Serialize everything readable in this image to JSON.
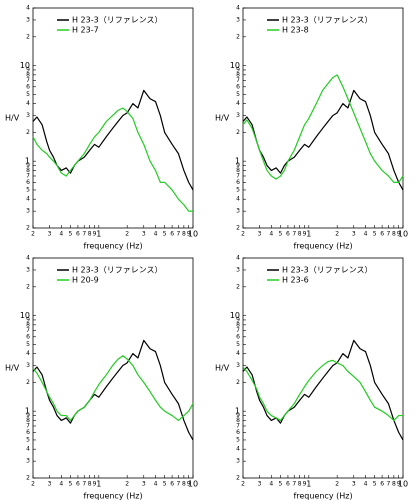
{
  "chart_data": [
    {
      "type": "line",
      "x_label": "frequency (Hz)",
      "y_label": "H/V",
      "log_x": true,
      "log_y": true,
      "grid": false,
      "legend": "upper left",
      "xlim": [
        0.2,
        10
      ],
      "ylim": [
        0.2,
        40
      ],
      "xticks": [
        {
          "value": 0.2,
          "label": "2"
        },
        {
          "value": 0.3,
          "label": "3"
        },
        {
          "value": 0.4,
          "label": "4"
        },
        {
          "value": 0.5,
          "label": "5"
        },
        {
          "value": 0.6,
          "label": "6"
        },
        {
          "value": 0.7,
          "label": "7"
        },
        {
          "value": 0.8,
          "label": "8"
        },
        {
          "value": 0.9,
          "label": "9"
        },
        1,
        {
          "value": 2,
          "label": "2"
        },
        {
          "value": 3,
          "label": "3"
        },
        {
          "value": 4,
          "label": "4"
        },
        {
          "value": 5,
          "label": "5"
        },
        {
          "value": 6,
          "label": "6"
        },
        {
          "value": 7,
          "label": "7"
        },
        {
          "value": 8,
          "label": "8"
        },
        {
          "value": 9,
          "label": "9"
        },
        10
      ],
      "yticks": [
        {
          "value": 0.2,
          "label": "2"
        },
        {
          "value": 0.3,
          "label": "3"
        },
        {
          "value": 0.4,
          "label": "4"
        },
        {
          "value": 0.5,
          "label": "5"
        },
        {
          "value": 0.6,
          "label": "6"
        },
        {
          "value": 0.7,
          "label": "7"
        },
        {
          "value": 0.8,
          "label": "8"
        },
        {
          "value": 0.9,
          "label": "9"
        },
        1,
        {
          "value": 2,
          "label": "2"
        },
        {
          "value": 3,
          "label": "3"
        },
        {
          "value": 4,
          "label": "4"
        },
        {
          "value": 5,
          "label": "5"
        },
        {
          "value": 6,
          "label": "6"
        },
        {
          "value": 7,
          "label": "7"
        },
        {
          "value": 8,
          "label": "8"
        },
        {
          "value": 9,
          "label": "9"
        },
        10,
        {
          "value": 20,
          "label": "2"
        },
        {
          "value": 30,
          "label": "3"
        },
        {
          "value": 40,
          "label": "4"
        }
      ],
      "x": [
        0.2,
        0.22,
        0.25,
        0.28,
        0.3,
        0.33,
        0.36,
        0.4,
        0.45,
        0.5,
        0.55,
        0.6,
        0.7,
        0.8,
        0.9,
        1,
        1.2,
        1.4,
        1.6,
        1.8,
        2,
        2.3,
        2.6,
        3,
        3.5,
        4,
        4.5,
        5,
        6,
        7,
        8,
        9,
        10
      ],
      "series": [
        {
          "name": "H 23-3（リファレンス）",
          "color": "#000000",
          "values": [
            2.6,
            2.9,
            2.4,
            1.6,
            1.3,
            1.1,
            0.9,
            0.8,
            0.85,
            0.75,
            0.9,
            1.0,
            1.1,
            1.3,
            1.5,
            1.4,
            1.8,
            2.2,
            2.6,
            3.0,
            3.2,
            4.0,
            3.6,
            5.5,
            4.5,
            4.2,
            3.0,
            2.0,
            1.5,
            1.2,
            0.8,
            0.6,
            0.5
          ]
        },
        {
          "name": "H 23-7",
          "color": "#22cc22",
          "values": [
            1.8,
            1.5,
            1.3,
            1.2,
            1.1,
            1.0,
            0.9,
            0.75,
            0.7,
            0.8,
            0.9,
            1.0,
            1.2,
            1.5,
            1.8,
            2.0,
            2.6,
            3.0,
            3.4,
            3.6,
            3.3,
            2.8,
            2.0,
            1.5,
            1.0,
            0.8,
            0.6,
            0.6,
            0.5,
            0.4,
            0.35,
            0.3,
            0.3
          ]
        }
      ]
    },
    {
      "type": "line",
      "x_label": "frequency (Hz)",
      "y_label": "H/V",
      "log_x": true,
      "log_y": true,
      "grid": false,
      "legend": "upper left",
      "xlim": [
        0.2,
        10
      ],
      "ylim": [
        0.2,
        40
      ],
      "xticks": [
        {
          "value": 0.2,
          "label": "2"
        },
        {
          "value": 0.3,
          "label": "3"
        },
        {
          "value": 0.4,
          "label": "4"
        },
        {
          "value": 0.5,
          "label": "5"
        },
        {
          "value": 0.6,
          "label": "6"
        },
        {
          "value": 0.7,
          "label": "7"
        },
        {
          "value": 0.8,
          "label": "8"
        },
        {
          "value": 0.9,
          "label": "9"
        },
        1,
        {
          "value": 2,
          "label": "2"
        },
        {
          "value": 3,
          "label": "3"
        },
        {
          "value": 4,
          "label": "4"
        },
        {
          "value": 5,
          "label": "5"
        },
        {
          "value": 6,
          "label": "6"
        },
        {
          "value": 7,
          "label": "7"
        },
        {
          "value": 8,
          "label": "8"
        },
        {
          "value": 9,
          "label": "9"
        },
        10
      ],
      "yticks": [
        {
          "value": 0.2,
          "label": "2"
        },
        {
          "value": 0.3,
          "label": "3"
        },
        {
          "value": 0.4,
          "label": "4"
        },
        {
          "value": 0.5,
          "label": "5"
        },
        {
          "value": 0.6,
          "label": "6"
        },
        {
          "value": 0.7,
          "label": "7"
        },
        {
          "value": 0.8,
          "label": "8"
        },
        {
          "value": 0.9,
          "label": "9"
        },
        1,
        {
          "value": 2,
          "label": "2"
        },
        {
          "value": 3,
          "label": "3"
        },
        {
          "value": 4,
          "label": "4"
        },
        {
          "value": 5,
          "label": "5"
        },
        {
          "value": 6,
          "label": "6"
        },
        {
          "value": 7,
          "label": "7"
        },
        {
          "value": 8,
          "label": "8"
        },
        {
          "value": 9,
          "label": "9"
        },
        10,
        {
          "value": 20,
          "label": "2"
        },
        {
          "value": 30,
          "label": "3"
        },
        {
          "value": 40,
          "label": "4"
        }
      ],
      "x": [
        0.2,
        0.22,
        0.25,
        0.28,
        0.3,
        0.33,
        0.36,
        0.4,
        0.45,
        0.5,
        0.55,
        0.6,
        0.7,
        0.8,
        0.9,
        1,
        1.2,
        1.4,
        1.6,
        1.8,
        2,
        2.3,
        2.6,
        3,
        3.5,
        4,
        4.5,
        5,
        6,
        7,
        8,
        9,
        10
      ],
      "series": [
        {
          "name": "H 23-3（リファレンス）",
          "color": "#000000",
          "values": [
            2.6,
            2.9,
            2.4,
            1.6,
            1.3,
            1.1,
            0.9,
            0.8,
            0.85,
            0.75,
            0.9,
            1.0,
            1.1,
            1.3,
            1.5,
            1.4,
            1.8,
            2.2,
            2.6,
            3.0,
            3.2,
            4.0,
            3.6,
            5.5,
            4.5,
            4.2,
            3.0,
            2.0,
            1.5,
            1.2,
            0.8,
            0.6,
            0.5
          ]
        },
        {
          "name": "H 23-8",
          "color": "#22cc22",
          "values": [
            2.4,
            2.7,
            2.2,
            1.6,
            1.3,
            1.0,
            0.8,
            0.7,
            0.65,
            0.7,
            0.8,
            1.0,
            1.3,
            1.8,
            2.4,
            2.8,
            4.0,
            5.5,
            6.5,
            7.5,
            8.0,
            6.0,
            4.5,
            3.2,
            2.2,
            1.6,
            1.2,
            1.0,
            0.8,
            0.7,
            0.6,
            0.6,
            0.7
          ]
        }
      ]
    },
    {
      "type": "line",
      "x_label": "frequency (Hz)",
      "y_label": "H/V",
      "log_x": true,
      "log_y": true,
      "grid": false,
      "legend": "upper left",
      "xlim": [
        0.2,
        10
      ],
      "ylim": [
        0.2,
        40
      ],
      "xticks": [
        {
          "value": 0.2,
          "label": "2"
        },
        {
          "value": 0.3,
          "label": "3"
        },
        {
          "value": 0.4,
          "label": "4"
        },
        {
          "value": 0.5,
          "label": "5"
        },
        {
          "value": 0.6,
          "label": "6"
        },
        {
          "value": 0.7,
          "label": "7"
        },
        {
          "value": 0.8,
          "label": "8"
        },
        {
          "value": 0.9,
          "label": "9"
        },
        1,
        {
          "value": 2,
          "label": "2"
        },
        {
          "value": 3,
          "label": "3"
        },
        {
          "value": 4,
          "label": "4"
        },
        {
          "value": 5,
          "label": "5"
        },
        {
          "value": 6,
          "label": "6"
        },
        {
          "value": 7,
          "label": "7"
        },
        {
          "value": 8,
          "label": "8"
        },
        {
          "value": 9,
          "label": "9"
        },
        10
      ],
      "yticks": [
        {
          "value": 0.2,
          "label": "2"
        },
        {
          "value": 0.3,
          "label": "3"
        },
        {
          "value": 0.4,
          "label": "4"
        },
        {
          "value": 0.5,
          "label": "5"
        },
        {
          "value": 0.6,
          "label": "6"
        },
        {
          "value": 0.7,
          "label": "7"
        },
        {
          "value": 0.8,
          "label": "8"
        },
        {
          "value": 0.9,
          "label": "9"
        },
        1,
        {
          "value": 2,
          "label": "2"
        },
        {
          "value": 3,
          "label": "3"
        },
        {
          "value": 4,
          "label": "4"
        },
        {
          "value": 5,
          "label": "5"
        },
        {
          "value": 6,
          "label": "6"
        },
        {
          "value": 7,
          "label": "7"
        },
        {
          "value": 8,
          "label": "8"
        },
        {
          "value": 9,
          "label": "9"
        },
        10,
        {
          "value": 20,
          "label": "2"
        },
        {
          "value": 30,
          "label": "3"
        },
        {
          "value": 40,
          "label": "4"
        }
      ],
      "x": [
        0.2,
        0.22,
        0.25,
        0.28,
        0.3,
        0.33,
        0.36,
        0.4,
        0.45,
        0.5,
        0.55,
        0.6,
        0.7,
        0.8,
        0.9,
        1,
        1.2,
        1.4,
        1.6,
        1.8,
        2,
        2.3,
        2.6,
        3,
        3.5,
        4,
        4.5,
        5,
        6,
        7,
        8,
        9,
        10
      ],
      "series": [
        {
          "name": "H 23-3（リファレンス）",
          "color": "#000000",
          "values": [
            2.6,
            2.9,
            2.4,
            1.6,
            1.3,
            1.1,
            0.9,
            0.8,
            0.85,
            0.75,
            0.9,
            1.0,
            1.1,
            1.3,
            1.5,
            1.4,
            1.8,
            2.2,
            2.6,
            3.0,
            3.2,
            4.0,
            3.6,
            5.5,
            4.5,
            4.2,
            3.0,
            2.0,
            1.5,
            1.2,
            0.8,
            0.6,
            0.5
          ]
        },
        {
          "name": "H 20-9",
          "color": "#22cc22",
          "values": [
            2.8,
            2.5,
            2.0,
            1.6,
            1.4,
            1.2,
            1.0,
            0.9,
            0.9,
            0.8,
            0.9,
            1.0,
            1.1,
            1.3,
            1.6,
            1.9,
            2.4,
            3.0,
            3.5,
            3.8,
            3.5,
            3.0,
            2.4,
            2.0,
            1.6,
            1.3,
            1.1,
            1.0,
            0.9,
            0.8,
            0.9,
            1.0,
            1.2
          ]
        }
      ]
    },
    {
      "type": "line",
      "x_label": "frequency (Hz)",
      "y_label": "H/V",
      "log_x": true,
      "log_y": true,
      "grid": false,
      "legend": "upper left",
      "xlim": [
        0.2,
        10
      ],
      "ylim": [
        0.2,
        40
      ],
      "xticks": [
        {
          "value": 0.2,
          "label": "2"
        },
        {
          "value": 0.3,
          "label": "3"
        },
        {
          "value": 0.4,
          "label": "4"
        },
        {
          "value": 0.5,
          "label": "5"
        },
        {
          "value": 0.6,
          "label": "6"
        },
        {
          "value": 0.7,
          "label": "7"
        },
        {
          "value": 0.8,
          "label": "8"
        },
        {
          "value": 0.9,
          "label": "9"
        },
        1,
        {
          "value": 2,
          "label": "2"
        },
        {
          "value": 3,
          "label": "3"
        },
        {
          "value": 4,
          "label": "4"
        },
        {
          "value": 5,
          "label": "5"
        },
        {
          "value": 6,
          "label": "6"
        },
        {
          "value": 7,
          "label": "7"
        },
        {
          "value": 8,
          "label": "8"
        },
        {
          "value": 9,
          "label": "9"
        },
        10
      ],
      "yticks": [
        {
          "value": 0.2,
          "label": "2"
        },
        {
          "value": 0.3,
          "label": "3"
        },
        {
          "value": 0.4,
          "label": "4"
        },
        {
          "value": 0.5,
          "label": "5"
        },
        {
          "value": 0.6,
          "label": "6"
        },
        {
          "value": 0.7,
          "label": "7"
        },
        {
          "value": 0.8,
          "label": "8"
        },
        {
          "value": 0.9,
          "label": "9"
        },
        1,
        {
          "value": 2,
          "label": "2"
        },
        {
          "value": 3,
          "label": "3"
        },
        {
          "value": 4,
          "label": "4"
        },
        {
          "value": 5,
          "label": "5"
        },
        {
          "value": 6,
          "label": "6"
        },
        {
          "value": 7,
          "label": "7"
        },
        {
          "value": 8,
          "label": "8"
        },
        {
          "value": 9,
          "label": "9"
        },
        10,
        {
          "value": 20,
          "label": "2"
        },
        {
          "value": 30,
          "label": "3"
        },
        {
          "value": 40,
          "label": "4"
        }
      ],
      "x": [
        0.2,
        0.22,
        0.25,
        0.28,
        0.3,
        0.33,
        0.36,
        0.4,
        0.45,
        0.5,
        0.55,
        0.6,
        0.7,
        0.8,
        0.9,
        1,
        1.2,
        1.4,
        1.6,
        1.8,
        2,
        2.3,
        2.6,
        3,
        3.5,
        4,
        4.5,
        5,
        6,
        7,
        8,
        9,
        10
      ],
      "series": [
        {
          "name": "H 23-3（リファレンス）",
          "color": "#000000",
          "values": [
            2.6,
            2.9,
            2.4,
            1.6,
            1.3,
            1.1,
            0.9,
            0.8,
            0.85,
            0.75,
            0.9,
            1.0,
            1.1,
            1.3,
            1.5,
            1.4,
            1.8,
            2.2,
            2.6,
            3.0,
            3.2,
            4.0,
            3.6,
            5.5,
            4.5,
            4.2,
            3.0,
            2.0,
            1.5,
            1.2,
            0.8,
            0.6,
            0.5
          ]
        },
        {
          "name": "H 23-6",
          "color": "#22cc22",
          "values": [
            2.9,
            2.6,
            2.1,
            1.7,
            1.4,
            1.2,
            1.0,
            0.9,
            0.85,
            0.8,
            0.9,
            1.0,
            1.2,
            1.5,
            1.8,
            2.1,
            2.6,
            3.0,
            3.3,
            3.4,
            3.2,
            3.0,
            2.6,
            2.3,
            2.0,
            1.6,
            1.3,
            1.1,
            1.0,
            0.9,
            0.8,
            0.9,
            0.9
          ]
        }
      ]
    }
  ]
}
